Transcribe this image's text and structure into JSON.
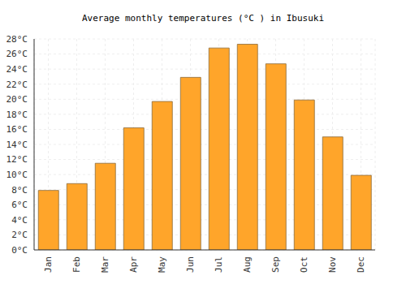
{
  "chart_data": {
    "type": "bar",
    "title": "Average monthly temperatures (°C ) in Ibusuki",
    "categories": [
      "Jan",
      "Feb",
      "Mar",
      "Apr",
      "May",
      "Jun",
      "Jul",
      "Aug",
      "Sep",
      "Oct",
      "Nov",
      "Dec"
    ],
    "values": [
      7.9,
      8.8,
      11.5,
      16.2,
      19.7,
      22.9,
      26.8,
      27.3,
      24.7,
      19.9,
      15.0,
      9.9
    ],
    "color": "#ffa52a",
    "ylim": [
      0,
      28
    ],
    "yticks": [
      {
        "value": 0,
        "label": "0°C"
      },
      {
        "value": 2,
        "label": "2°C"
      },
      {
        "value": 4,
        "label": "4°C"
      },
      {
        "value": 6,
        "label": "6°C"
      },
      {
        "value": 8,
        "label": "8°C"
      },
      {
        "value": 10,
        "label": "10°C"
      },
      {
        "value": 12,
        "label": "12°C"
      },
      {
        "value": 14,
        "label": "14°C"
      },
      {
        "value": 16,
        "label": "16°C"
      },
      {
        "value": 18,
        "label": "18°C"
      },
      {
        "value": 20,
        "label": "20°C"
      },
      {
        "value": 22,
        "label": "22°C"
      },
      {
        "value": 24,
        "label": "24°C"
      },
      {
        "value": 26,
        "label": "26°C"
      },
      {
        "value": 28,
        "label": "28°C"
      }
    ],
    "grid": true
  }
}
